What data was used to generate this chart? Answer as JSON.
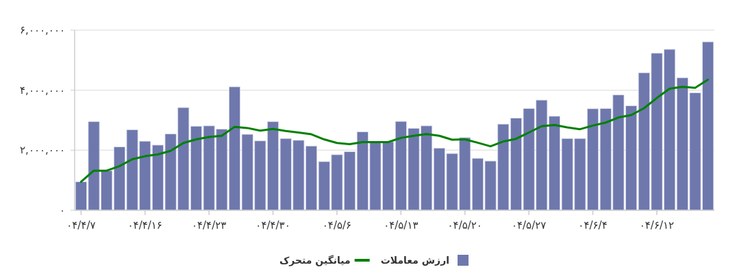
{
  "chart_data": {
    "type": "bar",
    "categories": [
      "۰۴/۴/۷",
      null,
      null,
      null,
      null,
      "۰۴/۴/۱۶",
      null,
      null,
      null,
      null,
      "۰۴/۴/۲۳",
      null,
      null,
      null,
      null,
      "۰۴/۴/۳۰",
      null,
      null,
      null,
      null,
      "۰۴/۵/۶",
      null,
      null,
      null,
      null,
      "۰۴/۵/۱۳",
      null,
      null,
      null,
      null,
      "۰۴/۵/۲۰",
      null,
      null,
      null,
      null,
      "۰۴/۵/۲۷",
      null,
      null,
      null,
      null,
      "۰۴/۶/۴",
      null,
      null,
      null,
      null,
      "۰۴/۶/۱۲",
      null,
      null,
      null,
      null
    ],
    "series": [
      {
        "name": "ارزش معاملات",
        "color": "#6e78ad",
        "values": [
          950000,
          2950000,
          1320000,
          2110000,
          2680000,
          2300000,
          2170000,
          2540000,
          3420000,
          2800000,
          2810000,
          2700000,
          4110000,
          2530000,
          2310000,
          2950000,
          2390000,
          2330000,
          2140000,
          1620000,
          1850000,
          1950000,
          2610000,
          2280000,
          2280000,
          2960000,
          2730000,
          2810000,
          2070000,
          1890000,
          2420000,
          1730000,
          1640000,
          2870000,
          3070000,
          3390000,
          3670000,
          3130000,
          2390000,
          2390000,
          3380000,
          3390000,
          3840000,
          3480000,
          4580000,
          5230000,
          5360000,
          4410000,
          3910000,
          5610000
        ]
      },
      {
        "name": "میانگین متحرک",
        "type": "line",
        "color": "#008000",
        "values": [
          950000,
          1320000,
          1320000,
          1470000,
          1700000,
          1800000,
          1860000,
          1980000,
          2240000,
          2360000,
          2440000,
          2480000,
          2780000,
          2740000,
          2650000,
          2710000,
          2640000,
          2590000,
          2530000,
          2360000,
          2240000,
          2200000,
          2270000,
          2270000,
          2270000,
          2410000,
          2480000,
          2540000,
          2480000,
          2350000,
          2360000,
          2250000,
          2130000,
          2290000,
          2380000,
          2590000,
          2800000,
          2840000,
          2760000,
          2700000,
          2820000,
          2920000,
          3090000,
          3170000,
          3400000,
          3740000,
          4050000,
          4110000,
          4080000,
          4350000
        ]
      }
    ],
    "ylim": [
      0,
      6000000
    ],
    "yticks": [
      {
        "value": 0,
        "label": "۰"
      },
      {
        "value": 2000000,
        "label": "۲,۰۰۰,۰۰۰"
      },
      {
        "value": 4000000,
        "label": "۴,۰۰۰,۰۰۰"
      },
      {
        "value": 6000000,
        "label": "۶,۰۰۰,۰۰۰"
      }
    ],
    "grid": "y",
    "legend": "bottom"
  }
}
